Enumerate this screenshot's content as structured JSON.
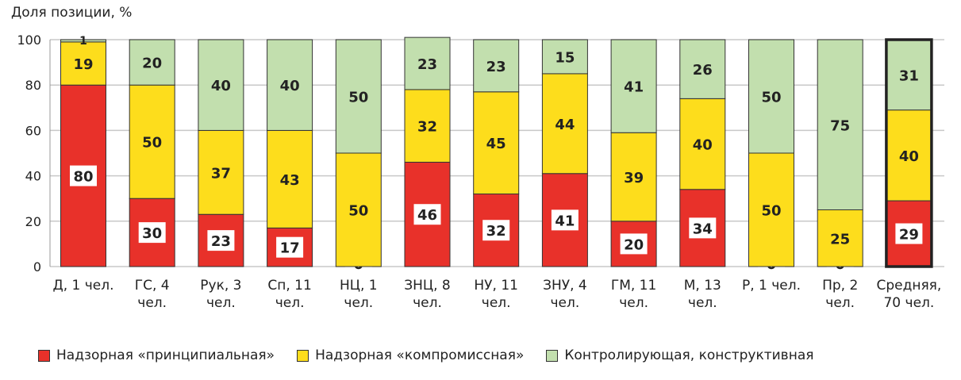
{
  "chart_data": {
    "type": "bar",
    "stacked": true,
    "ylabel": "Доля позиции, %",
    "ylim": [
      0,
      100
    ],
    "yticks": [
      0,
      20,
      40,
      60,
      80,
      100
    ],
    "grid": true,
    "legend_position": "bottom",
    "categories": [
      [
        "Д, 1 чел."
      ],
      [
        "ГС, 4",
        "чел."
      ],
      [
        "Рук, 3",
        "чел."
      ],
      [
        "Сп, 11",
        "чел."
      ],
      [
        "НЦ, 1",
        "чел."
      ],
      [
        "ЗНЦ, 8",
        "чел."
      ],
      [
        "НУ, 11",
        "чел."
      ],
      [
        "ЗНУ, 4",
        "чел."
      ],
      [
        "ГМ, 11",
        "чел."
      ],
      [
        "М, 13",
        "чел."
      ],
      [
        "Р, 1 чел."
      ],
      [
        "Пр, 2",
        "чел."
      ],
      [
        "Средняя,",
        "70 чел."
      ]
    ],
    "highlighted_category": "Средняя, 70 чел.",
    "series": [
      {
        "name": "Надзорная «принципиальная»",
        "color": "#e8312a",
        "values": [
          80,
          30,
          23,
          17,
          0,
          46,
          32,
          41,
          20,
          34,
          0,
          0,
          29
        ]
      },
      {
        "name": "Надзорная «компромиссная»",
        "color": "#fddd1c",
        "values": [
          19,
          50,
          37,
          43,
          50,
          32,
          45,
          44,
          39,
          40,
          50,
          25,
          40
        ]
      },
      {
        "name": "Контролирующая, конструктивная",
        "color": "#c2dfae",
        "values": [
          1,
          20,
          40,
          40,
          50,
          23,
          23,
          15,
          41,
          26,
          50,
          75,
          31
        ]
      }
    ]
  }
}
